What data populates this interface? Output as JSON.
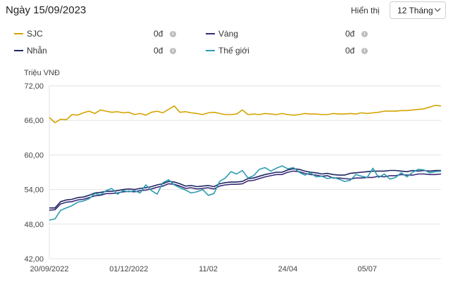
{
  "header": {
    "title": "Ngày 15/09/2023",
    "period_label": "Hiển thị",
    "period_value": "12 Tháng"
  },
  "legend": [
    {
      "name": "SJC",
      "value": "0đ",
      "color": "#d4a400"
    },
    {
      "name": "Vàng",
      "value": "0đ",
      "color": "#3a2a78"
    },
    {
      "name": "Nhẫn",
      "value": "0đ",
      "color": "#1c2660"
    },
    {
      "name": "Thế giới",
      "value": "0đ",
      "color": "#2a9cb0"
    }
  ],
  "chart_data": {
    "type": "line",
    "ylabel": "Triệu VNĐ",
    "ylim": [
      42,
      72
    ],
    "yticks": [
      "72,00",
      "66,00",
      "60,00",
      "54,00",
      "48,00",
      "42,00"
    ],
    "ytick_values": [
      72,
      66,
      60,
      54,
      48,
      42
    ],
    "x_tick_labels": [
      "20/09/2022",
      "01/12/2022",
      "11/02",
      "24/04",
      "05/07"
    ],
    "x_tick_index": [
      0,
      14,
      28,
      42,
      56
    ],
    "x_count": 70,
    "series": [
      {
        "name": "SJC",
        "color": "#d4a400",
        "values": [
          66.5,
          65.6,
          66.2,
          66.1,
          67.0,
          66.9,
          67.3,
          67.6,
          67.2,
          67.8,
          67.6,
          67.4,
          67.5,
          67.3,
          67.4,
          67.0,
          67.2,
          66.9,
          67.4,
          67.6,
          67.3,
          67.9,
          68.5,
          67.4,
          67.5,
          67.3,
          67.2,
          67.0,
          67.3,
          67.4,
          67.2,
          67.0,
          67.0,
          67.1,
          67.8,
          67.0,
          67.1,
          67.0,
          67.2,
          67.1,
          67.0,
          67.2,
          67.0,
          66.9,
          67.0,
          67.2,
          67.1,
          67.1,
          67.0,
          67.0,
          67.2,
          67.1,
          67.1,
          67.2,
          67.1,
          67.3,
          67.2,
          67.3,
          67.4,
          67.6,
          67.6,
          67.6,
          67.7,
          67.7,
          67.8,
          67.9,
          68.0,
          68.3,
          68.6,
          68.5
        ]
      },
      {
        "name": "Vàng",
        "color": "#3a2a78",
        "values": [
          50.4,
          50.5,
          51.5,
          51.8,
          51.9,
          52.2,
          52.3,
          52.6,
          52.9,
          53.0,
          53.3,
          53.3,
          53.4,
          53.6,
          53.7,
          53.6,
          53.8,
          53.9,
          54.1,
          54.4,
          54.6,
          55.0,
          54.9,
          54.6,
          54.2,
          54.3,
          54.1,
          54.2,
          54.3,
          54.1,
          54.6,
          54.8,
          54.9,
          54.9,
          55.0,
          55.5,
          55.6,
          55.9,
          56.2,
          56.4,
          56.6,
          56.6,
          57.0,
          57.2,
          57.1,
          56.8,
          56.6,
          56.5,
          56.3,
          56.4,
          56.0,
          56.0,
          55.9,
          55.8,
          56.0,
          56.0,
          56.1,
          56.1,
          56.3,
          56.2,
          56.4,
          56.4,
          56.6,
          56.5,
          56.5,
          56.7,
          56.7,
          56.6,
          56.6,
          56.7
        ]
      },
      {
        "name": "Nhẫn",
        "color": "#1c2660",
        "values": [
          50.8,
          50.8,
          51.9,
          52.2,
          52.3,
          52.6,
          52.7,
          53.0,
          53.4,
          53.5,
          53.7,
          53.7,
          53.8,
          54.0,
          54.1,
          54.0,
          54.2,
          54.3,
          54.5,
          54.8,
          55.0,
          55.4,
          55.3,
          55.0,
          54.6,
          54.7,
          54.5,
          54.6,
          54.7,
          54.5,
          55.0,
          55.2,
          55.3,
          55.3,
          55.4,
          55.9,
          56.0,
          56.3,
          56.6,
          56.8,
          57.0,
          57.0,
          57.4,
          57.6,
          57.5,
          57.2,
          57.0,
          56.9,
          56.7,
          56.8,
          56.6,
          56.5,
          56.5,
          56.8,
          56.9,
          57.0,
          57.1,
          57.2,
          57.2,
          57.2,
          57.3,
          57.3,
          57.2,
          57.1,
          57.3,
          57.2,
          57.3,
          57.2,
          57.3,
          57.3
        ]
      },
      {
        "name": "Thế giới",
        "color": "#2a9cb0",
        "values": [
          48.7,
          48.9,
          50.4,
          50.8,
          51.2,
          51.8,
          52.0,
          52.4,
          53.3,
          53.1,
          53.8,
          54.2,
          53.2,
          53.8,
          53.6,
          53.8,
          53.4,
          54.8,
          53.8,
          53.2,
          55.2,
          55.7,
          54.8,
          54.3,
          53.9,
          53.4,
          53.6,
          54.0,
          53.0,
          53.3,
          55.4,
          56.0,
          57.1,
          56.7,
          57.3,
          56.0,
          56.4,
          57.5,
          57.8,
          57.2,
          57.7,
          58.1,
          57.6,
          57.8,
          57.0,
          56.5,
          56.9,
          56.2,
          56.3,
          55.9,
          56.1,
          55.8,
          55.4,
          55.6,
          56.6,
          56.3,
          56.1,
          57.7,
          56.1,
          56.7,
          55.8,
          56.1,
          56.9,
          56.2,
          57.0,
          57.5,
          57.4,
          56.9,
          57.1,
          57.2
        ]
      }
    ]
  }
}
